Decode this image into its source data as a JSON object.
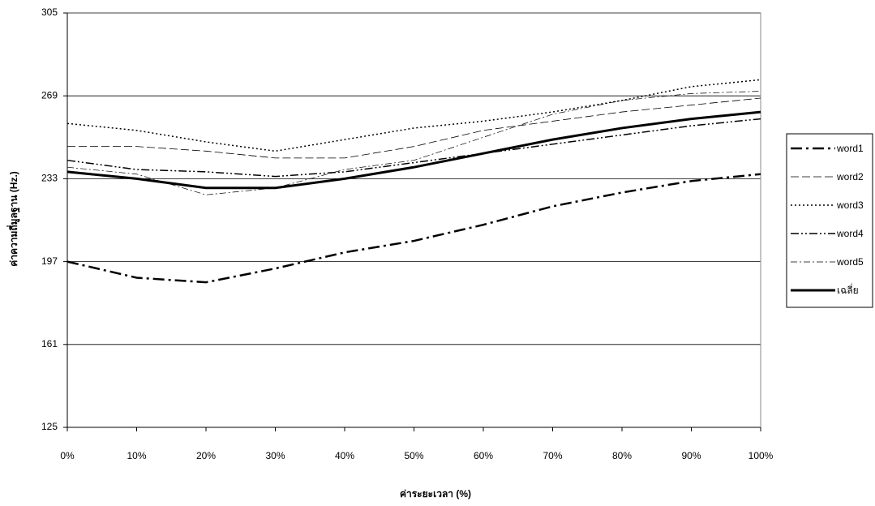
{
  "chart_data": {
    "type": "line",
    "x_label": "ค่าระยะเวลา (%)",
    "y_label": "ค่าความถี่มูลฐาน (Hz.)",
    "categories": [
      "0%",
      "10%",
      "20%",
      "30%",
      "40%",
      "50%",
      "60%",
      "70%",
      "80%",
      "90%",
      "100%"
    ],
    "ylim": [
      125,
      305
    ],
    "yticks": [
      125,
      161,
      197,
      233,
      269,
      305
    ],
    "grid": true,
    "series": [
      {
        "name": "word1",
        "color": "#000000",
        "values": [
          197,
          190,
          188,
          194,
          201,
          206,
          213,
          221,
          227,
          232,
          235
        ]
      },
      {
        "name": "word2",
        "color": "#000000",
        "values": [
          247,
          247,
          245,
          242,
          242,
          247,
          254,
          258,
          262,
          265,
          268
        ]
      },
      {
        "name": "word3",
        "color": "#000000",
        "values": [
          257,
          254,
          249,
          245,
          250,
          255,
          258,
          262,
          267,
          273,
          276
        ]
      },
      {
        "name": "word4",
        "color": "#000000",
        "values": [
          241,
          237,
          236,
          234,
          236,
          240,
          244,
          248,
          252,
          256,
          259
        ]
      },
      {
        "name": "word5",
        "color": "#000000",
        "values": [
          238,
          235,
          226,
          229,
          237,
          241,
          251,
          261,
          267,
          270,
          271
        ]
      },
      {
        "name": "เฉลี่ย",
        "color": "#000000",
        "values": [
          236,
          233,
          229,
          229,
          233,
          238,
          244,
          250,
          255,
          259,
          262
        ]
      }
    ]
  }
}
